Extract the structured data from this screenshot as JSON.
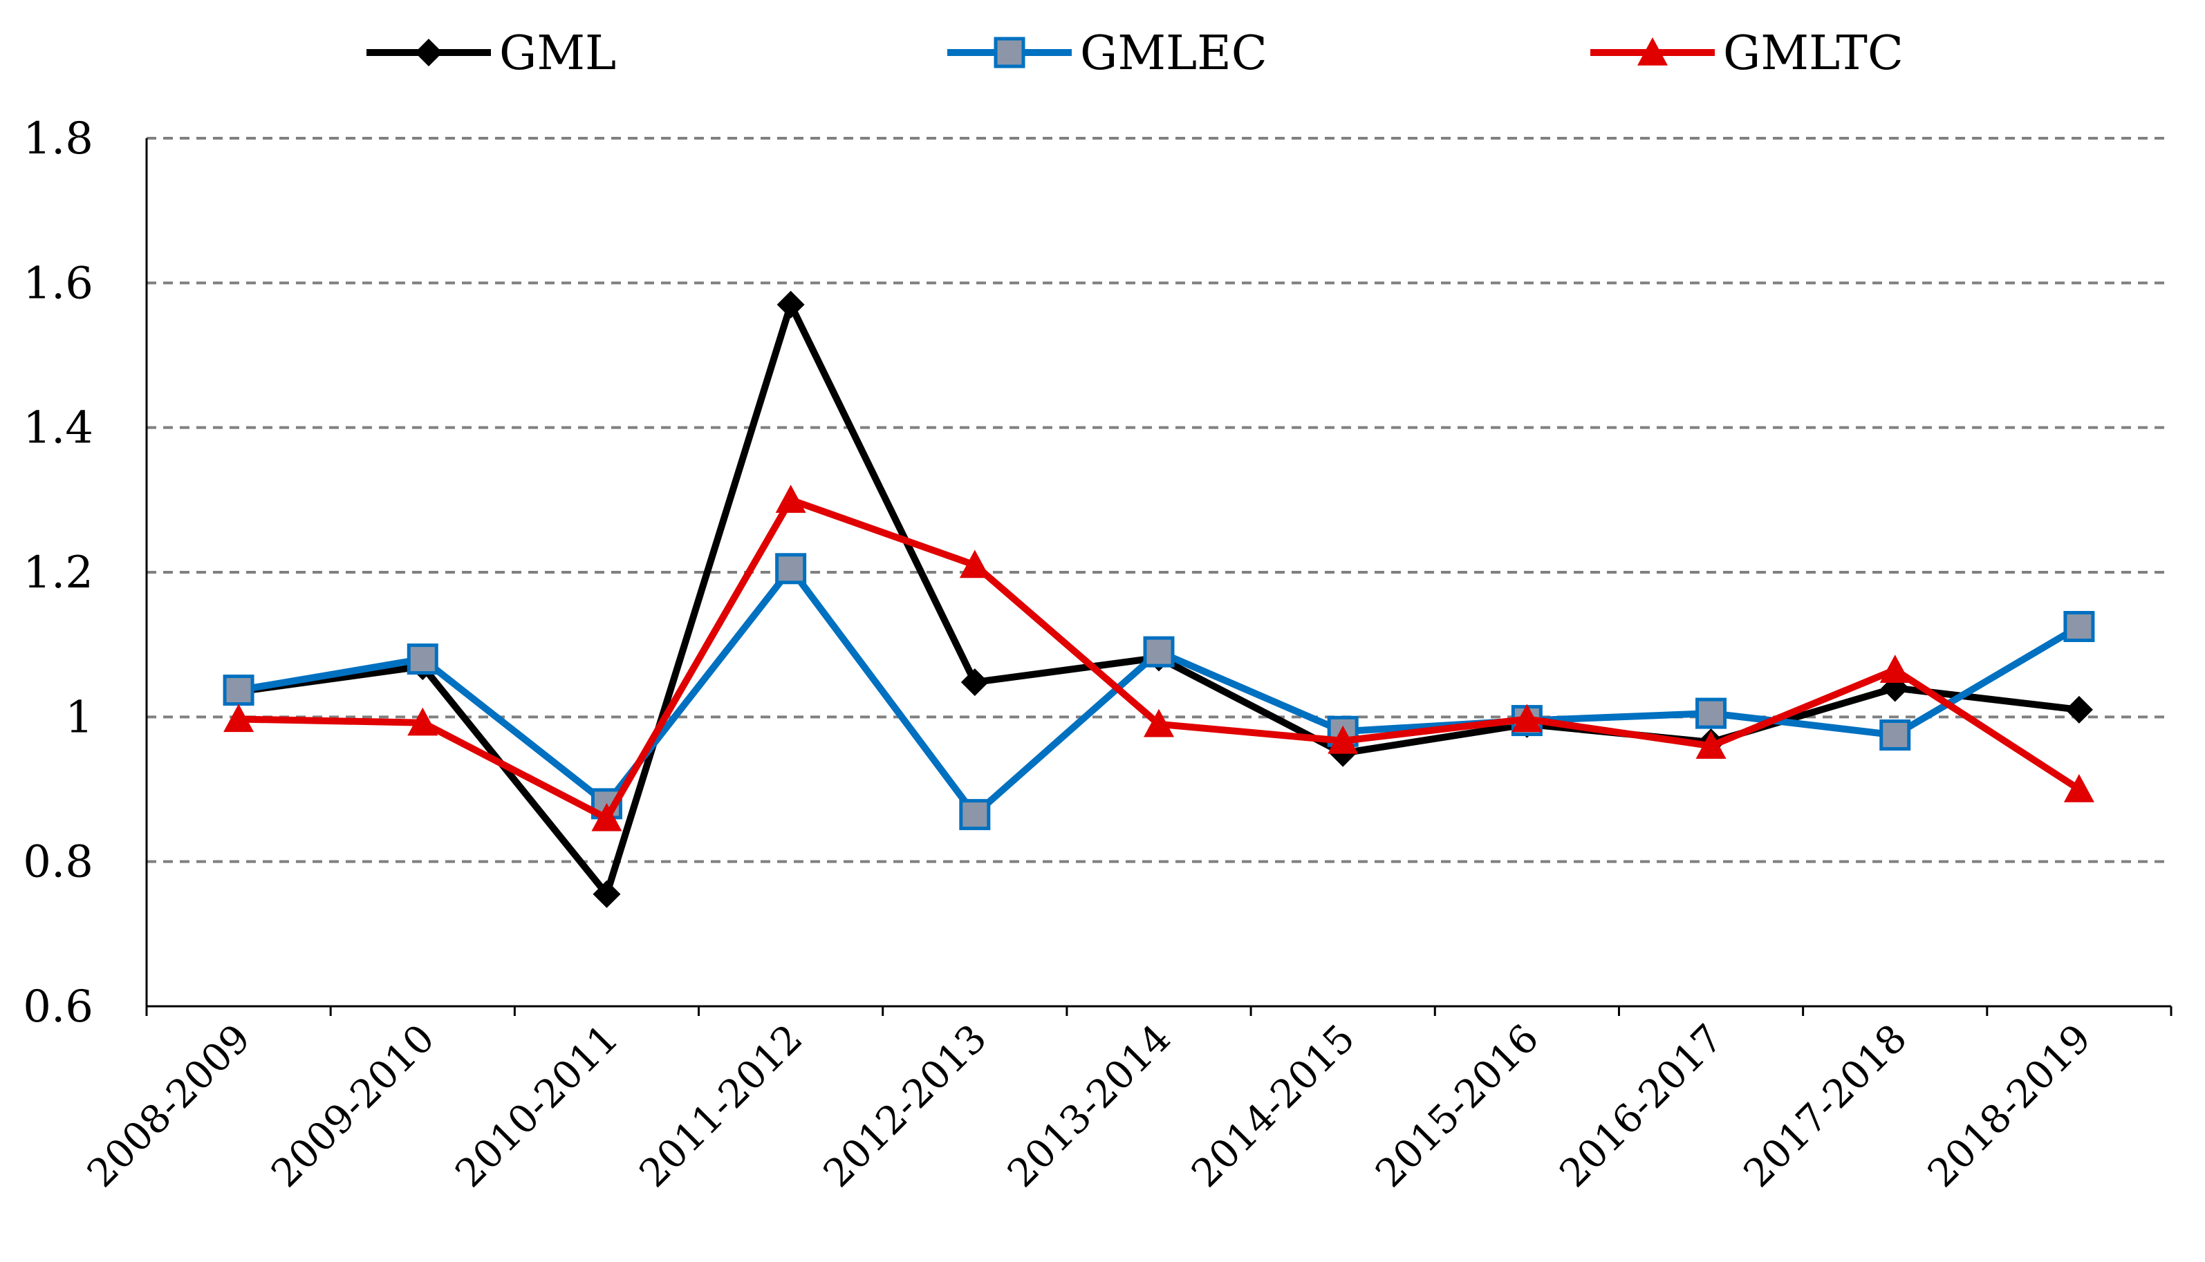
{
  "chart_data": {
    "type": "line",
    "title": "",
    "xlabel": "",
    "ylabel": "",
    "categories": [
      "2008-2009",
      "2009-2010",
      "2010-2011",
      "2011-2012",
      "2012-2013",
      "2013-2014",
      "2014-2015",
      "2015-2016",
      "2016-2017",
      "2017-2018",
      "2018-2019"
    ],
    "y_ticks": [
      "0.6",
      "0.8",
      "1",
      "1.2",
      "1.4",
      "1.6",
      "1.8"
    ],
    "ylim": [
      0.6,
      1.8
    ],
    "grid": "horizontal dashed",
    "legend": "top",
    "series": [
      {
        "name": "GML",
        "color": "#000000",
        "marker": "diamond",
        "values": [
          1.035,
          1.07,
          0.755,
          1.57,
          1.048,
          1.082,
          0.95,
          0.99,
          0.965,
          1.04,
          1.01
        ]
      },
      {
        "name": "GMLEC",
        "color": "#0070C0",
        "marker": "square",
        "marker_fill": "#8C96A8",
        "values": [
          1.037,
          1.08,
          0.88,
          1.205,
          0.865,
          1.09,
          0.98,
          0.995,
          1.005,
          0.975,
          1.125
        ]
      },
      {
        "name": "GMLTC",
        "color": "#E00000",
        "marker": "triangle",
        "values": [
          0.997,
          0.992,
          0.86,
          1.3,
          1.21,
          0.99,
          0.967,
          0.997,
          0.96,
          1.065,
          0.9
        ]
      }
    ]
  }
}
